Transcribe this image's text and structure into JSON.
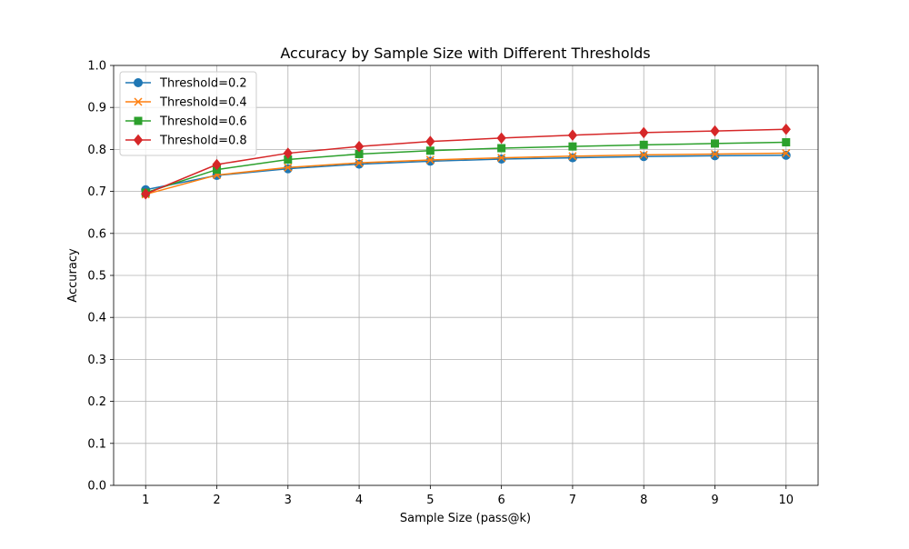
{
  "chart_data": {
    "type": "line",
    "title": "Accuracy by Sample Size with Different Thresholds",
    "xlabel": "Sample Size (pass@k)",
    "ylabel": "Accuracy",
    "x": [
      1,
      2,
      3,
      4,
      5,
      6,
      7,
      8,
      9,
      10
    ],
    "xlim": [
      0.55,
      10.45
    ],
    "ylim": [
      0.0,
      1.0
    ],
    "yticks": [
      0.0,
      0.1,
      0.2,
      0.3,
      0.4,
      0.5,
      0.6,
      0.7,
      0.8,
      0.9,
      1.0
    ],
    "ytick_labels": [
      "0.0",
      "0.1",
      "0.2",
      "0.3",
      "0.4",
      "0.5",
      "0.6",
      "0.7",
      "0.8",
      "0.9",
      "1.0"
    ],
    "xtick_labels": [
      "1",
      "2",
      "3",
      "4",
      "5",
      "6",
      "7",
      "8",
      "9",
      "10"
    ],
    "grid": true,
    "legend_position": "top-left",
    "series": [
      {
        "name": "Threshold=0.2",
        "color": "#1f77b4",
        "marker": "circle",
        "values": [
          0.704,
          0.738,
          0.754,
          0.765,
          0.772,
          0.777,
          0.78,
          0.783,
          0.785,
          0.786
        ]
      },
      {
        "name": "Threshold=0.4",
        "color": "#ff7f0e",
        "marker": "x",
        "values": [
          0.693,
          0.739,
          0.757,
          0.768,
          0.775,
          0.78,
          0.784,
          0.787,
          0.789,
          0.791
        ]
      },
      {
        "name": "Threshold=0.6",
        "color": "#2ca02c",
        "marker": "square",
        "values": [
          0.697,
          0.752,
          0.776,
          0.789,
          0.797,
          0.803,
          0.807,
          0.811,
          0.814,
          0.817
        ]
      },
      {
        "name": "Threshold=0.8",
        "color": "#d62728",
        "marker": "diamond",
        "values": [
          0.694,
          0.764,
          0.791,
          0.807,
          0.819,
          0.827,
          0.834,
          0.84,
          0.844,
          0.848
        ]
      }
    ]
  }
}
